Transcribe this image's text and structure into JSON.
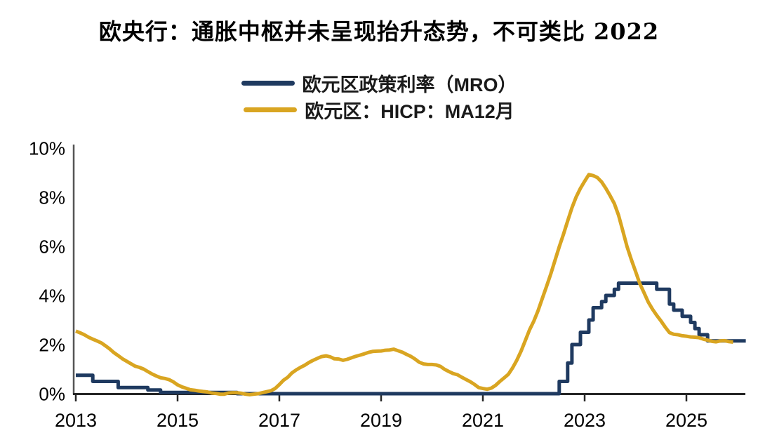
{
  "title": "欧央行：通胀中枢并未呈现抬升态势，不可类比 2022",
  "colors": {
    "mro_blue": "#1F3A60",
    "hicp_gold": "#D9A521",
    "x_axis": "#262626",
    "y_axis": "#555555",
    "text": "#000000"
  },
  "chart_data": {
    "type": "line",
    "title": "欧央行：通胀中枢并未呈现抬升态势，不可类比 2022",
    "xlabel": "",
    "ylabel": "",
    "x_unit": "year",
    "sampling": "monthly",
    "grid": false,
    "legend_position": "top-center",
    "xlim": [
      2013,
      2026.3
    ],
    "ylim": [
      0,
      10
    ],
    "x_tick_years": [
      2013,
      2015,
      2017,
      2019,
      2021,
      2023,
      2025
    ],
    "x_tick_labels": [
      "2013",
      "2015",
      "2017",
      "2019",
      "2021",
      "2023",
      "2025"
    ],
    "y_ticks": [
      0,
      2,
      4,
      6,
      8,
      10
    ],
    "y_tick_labels": [
      "0%",
      "2%",
      "4%",
      "6%",
      "8%",
      "10%"
    ],
    "series": [
      {
        "name": "欧元区政策利率（MRO）",
        "color": "#1F3A60",
        "line_style": "step",
        "start": "2013-01",
        "values": [
          0.75,
          0.75,
          0.75,
          0.75,
          0.5,
          0.5,
          0.5,
          0.5,
          0.5,
          0.5,
          0.25,
          0.25,
          0.25,
          0.25,
          0.25,
          0.25,
          0.25,
          0.15,
          0.15,
          0.15,
          0.05,
          0.05,
          0.05,
          0.05,
          0.05,
          0.05,
          0.05,
          0.05,
          0.05,
          0.05,
          0.05,
          0.05,
          0.05,
          0.05,
          0.05,
          0.05,
          0.05,
          0.05,
          0,
          0,
          0,
          0,
          0,
          0,
          0,
          0,
          0,
          0,
          0,
          0,
          0,
          0,
          0,
          0,
          0,
          0,
          0,
          0,
          0,
          0,
          0,
          0,
          0,
          0,
          0,
          0,
          0,
          0,
          0,
          0,
          0,
          0,
          0,
          0,
          0,
          0,
          0,
          0,
          0,
          0,
          0,
          0,
          0,
          0,
          0,
          0,
          0,
          0,
          0,
          0,
          0,
          0,
          0,
          0,
          0,
          0,
          0,
          0,
          0,
          0,
          0,
          0,
          0,
          0,
          0,
          0,
          0,
          0,
          0,
          0,
          0,
          0,
          0,
          0,
          0.5,
          0.5,
          1.25,
          2,
          2,
          2.5,
          2.5,
          3,
          3.5,
          3.5,
          3.75,
          4,
          4,
          4.25,
          4.5,
          4.5,
          4.5,
          4.5,
          4.5,
          4.5,
          4.5,
          4.5,
          4.5,
          4.25,
          4.25,
          4.25,
          3.65,
          3.4,
          3.4,
          3.15,
          3.15,
          2.9,
          2.65,
          2.4,
          2.4,
          2.15,
          2.15,
          2.15,
          2.15,
          2.15,
          2.15,
          2.15,
          2.15,
          2.15,
          2.15
        ]
      },
      {
        "name": "欧元区：HICP：MA12月",
        "color": "#D9A521",
        "line_style": "linear",
        "start": "2013-01",
        "values": [
          2.55,
          2.48,
          2.4,
          2.3,
          2.22,
          2.15,
          2.07,
          1.95,
          1.82,
          1.67,
          1.55,
          1.42,
          1.32,
          1.22,
          1.12,
          1.07,
          1,
          0.9,
          0.8,
          0.72,
          0.65,
          0.62,
          0.57,
          0.48,
          0.36,
          0.28,
          0.22,
          0.16,
          0.14,
          0.11,
          0.09,
          0.07,
          0.03,
          0.01,
          -0.02,
          -0.02,
          0.03,
          0.04,
          0.04,
          0.02,
          -0.02,
          -0.04,
          -0.02,
          0,
          0.04,
          0.08,
          0.12,
          0.21,
          0.37,
          0.55,
          0.67,
          0.85,
          0.97,
          1.07,
          1.16,
          1.27,
          1.36,
          1.44,
          1.51,
          1.54,
          1.5,
          1.42,
          1.41,
          1.36,
          1.4,
          1.46,
          1.52,
          1.57,
          1.62,
          1.68,
          1.72,
          1.73,
          1.74,
          1.77,
          1.78,
          1.81,
          1.75,
          1.69,
          1.6,
          1.52,
          1.41,
          1.28,
          1.21,
          1.19,
          1.19,
          1.17,
          1.11,
          0.99,
          0.9,
          0.82,
          0.77,
          0.67,
          0.58,
          0.49,
          0.38,
          0.25,
          0.21,
          0.18,
          0.23,
          0.34,
          0.5,
          0.64,
          0.79,
          1.05,
          1.36,
          1.73,
          2.16,
          2.6,
          2.95,
          3.37,
          3.87,
          4.36,
          4.87,
          5.42,
          5.98,
          6.49,
          7.03,
          7.57,
          8.01,
          8.36,
          8.65,
          8.92,
          8.88,
          8.8,
          8.62,
          8.36,
          8.06,
          7.74,
          7.27,
          6.63,
          5.99,
          5.46,
          4.98,
          4.49,
          4.11,
          3.73,
          3.44,
          3.19,
          2.96,
          2.71,
          2.49,
          2.42,
          2.4,
          2.36,
          2.34,
          2.31,
          2.3,
          2.28,
          2.22,
          2.18,
          2.13,
          2.11,
          2.15,
          2.16,
          2.12,
          2.1
        ]
      }
    ]
  }
}
